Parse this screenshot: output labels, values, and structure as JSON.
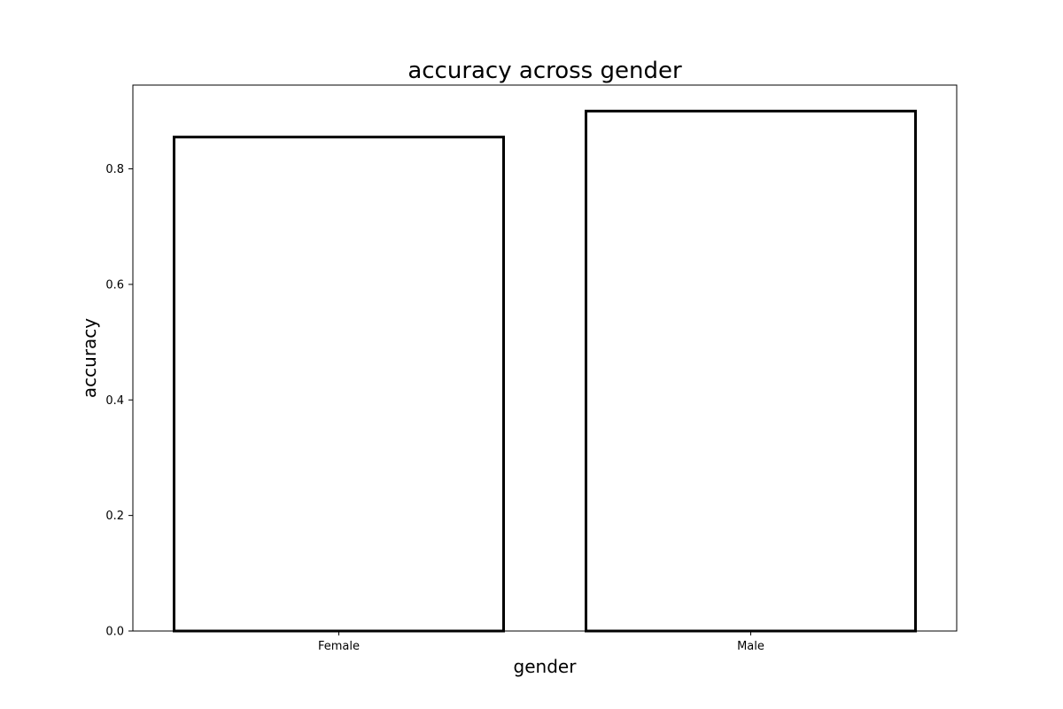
{
  "chart_data": {
    "type": "bar",
    "title": "accuracy across gender",
    "xlabel": "gender",
    "ylabel": "accuracy",
    "categories": [
      "Female",
      "Male"
    ],
    "values": [
      0.855,
      0.9
    ],
    "ylim": [
      0,
      0.945
    ],
    "yticks": [
      0.0,
      0.2,
      0.4,
      0.6,
      0.8
    ],
    "ytick_labels": [
      "0.0",
      "0.2",
      "0.4",
      "0.6",
      "0.8"
    ],
    "grid": false,
    "colors": {
      "bar_fill": "#ffffff",
      "bar_edge": "#000000",
      "axes": "#000000"
    }
  }
}
